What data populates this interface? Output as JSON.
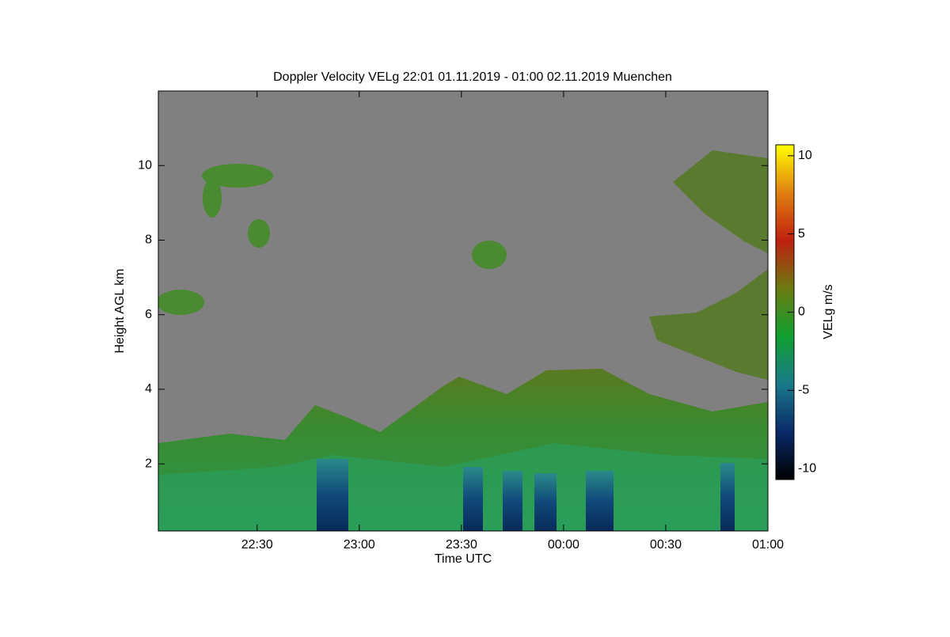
{
  "chart_data": {
    "type": "heatmap",
    "title": "Doppler Velocity VELg   22:01 01.11.2019 - 01:00 02.11.2019 Muenchen",
    "x_label": "Time UTC",
    "y_label": "Height AGL km",
    "colorbar_label": "VELg m/s",
    "xlim": [
      1,
      180
    ],
    "xticks": [
      {
        "value": 30,
        "label": "22:30"
      },
      {
        "value": 60,
        "label": "23:00"
      },
      {
        "value": 90,
        "label": "23:30"
      },
      {
        "value": 120,
        "label": "00:00"
      },
      {
        "value": 150,
        "label": "00:30"
      },
      {
        "value": 180,
        "label": "01:00"
      }
    ],
    "ylim": [
      0.2,
      12.0
    ],
    "yticks": [
      2,
      4,
      6,
      8,
      10
    ],
    "clim": [
      -10.7,
      10.7
    ],
    "cticks": [
      -10,
      -5,
      0,
      5,
      10
    ],
    "colorscale": [
      "#000000",
      "#0a2a6a",
      "#1a7a8a",
      "#10a030",
      "#6a7a10",
      "#c02010",
      "#e08010",
      "#ffff00"
    ],
    "background_color": "#808080"
  }
}
